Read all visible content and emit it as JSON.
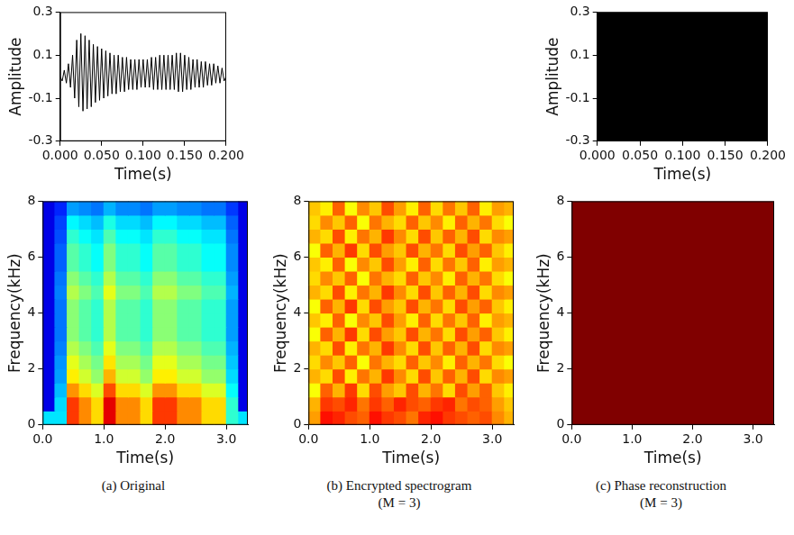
{
  "chart_data": [
    {
      "type": "line",
      "x_label": "Time(s)",
      "y_label": "Amplitude",
      "color": "#000000",
      "grid": false,
      "xlim": [
        0,
        0.2
      ],
      "ylim": [
        -0.3,
        0.3
      ],
      "xticks": [
        {
          "value": 0,
          "label": "0.000"
        },
        {
          "value": 0.05,
          "label": "0.050"
        },
        {
          "value": 0.1,
          "label": "0.100"
        },
        {
          "value": 0.15,
          "label": "0.150"
        },
        {
          "value": 0.2,
          "label": "0.200"
        }
      ],
      "yticks": [
        -0.3,
        -0.1,
        0.1,
        0.3
      ],
      "x": [
        0,
        0.0025,
        0.005,
        0.0075,
        0.01,
        0.0125,
        0.015,
        0.0175,
        0.02,
        0.0225,
        0.025,
        0.0275,
        0.03,
        0.0325,
        0.035,
        0.0375,
        0.04,
        0.0425,
        0.045,
        0.0475,
        0.05,
        0.0525,
        0.055,
        0.0575,
        0.06,
        0.0625,
        0.065,
        0.0675,
        0.07,
        0.0725,
        0.075,
        0.0775,
        0.08,
        0.0825,
        0.085,
        0.0875,
        0.09,
        0.0925,
        0.095,
        0.0975,
        0.1,
        0.1025,
        0.105,
        0.1075,
        0.11,
        0.1125,
        0.115,
        0.1175,
        0.12,
        0.1225,
        0.125,
        0.1275,
        0.13,
        0.1325,
        0.135,
        0.1375,
        0.14,
        0.1425,
        0.145,
        0.1475,
        0.15,
        0.1525,
        0.155,
        0.1575,
        0.16,
        0.1625,
        0.165,
        0.1675,
        0.17,
        0.1725,
        0.175,
        0.1775,
        0.18,
        0.1825,
        0.185,
        0.1875,
        0.19,
        0.1925,
        0.195,
        0.1975,
        0.2
      ],
      "values": [
        0,
        -0.02,
        0.03,
        -0.03,
        0.06,
        -0.05,
        0.1,
        -0.1,
        0.17,
        -0.14,
        0.2,
        -0.16,
        0.19,
        -0.15,
        0.17,
        -0.14,
        0.15,
        -0.12,
        0.14,
        -0.11,
        0.13,
        -0.1,
        0.12,
        -0.09,
        0.11,
        -0.08,
        0.1,
        -0.08,
        0.1,
        -0.07,
        0.09,
        -0.07,
        0.09,
        -0.06,
        0.08,
        -0.06,
        0.08,
        -0.06,
        0.08,
        -0.05,
        0.08,
        -0.05,
        0.08,
        -0.05,
        0.09,
        -0.06,
        0.09,
        -0.06,
        0.1,
        -0.06,
        0.1,
        -0.06,
        0.1,
        -0.06,
        0.1,
        -0.06,
        0.11,
        -0.07,
        0.11,
        -0.07,
        0.1,
        -0.06,
        0.09,
        -0.06,
        0.08,
        -0.05,
        0.08,
        -0.05,
        0.07,
        -0.05,
        0.07,
        -0.04,
        0.06,
        -0.04,
        0.06,
        -0.03,
        0.05,
        -0.03,
        0.04,
        -0.02,
        0
      ]
    },
    {
      "type": "area",
      "x_label": "Time(s)",
      "y_label": "Amplitude",
      "color": "#000000",
      "grid": false,
      "xlim": [
        0,
        0.2
      ],
      "ylim": [
        -0.3,
        0.3
      ],
      "xticks": [
        {
          "value": 0,
          "label": "0.000"
        },
        {
          "value": 0.05,
          "label": "0.050"
        },
        {
          "value": 0.1,
          "label": "0.100"
        },
        {
          "value": 0.15,
          "label": "0.150"
        },
        {
          "value": 0.2,
          "label": "0.200"
        }
      ],
      "yticks": [
        -0.3,
        -0.1,
        0.1,
        0.3
      ],
      "x": [
        0,
        0.2
      ],
      "upper": [
        0.3,
        0.3
      ],
      "lower": [
        -0.3,
        -0.3
      ]
    },
    {
      "type": "heatmap",
      "caption": [
        "(a) Original"
      ],
      "x_label": "Time(s)",
      "y_label": "Frequency(kHz)",
      "grid": false,
      "xlim": [
        0,
        3.35
      ],
      "ylim": [
        0,
        8
      ],
      "xticks": [
        {
          "value": 0,
          "label": "0.0"
        },
        {
          "value": 1,
          "label": "1.0"
        },
        {
          "value": 2,
          "label": "2.0"
        },
        {
          "value": 3,
          "label": "3.0"
        }
      ],
      "yticks": [
        0,
        2,
        4,
        6,
        8
      ],
      "zlim": [
        0,
        1
      ],
      "x_edges": [
        0,
        0.2,
        0.4,
        0.6,
        0.8,
        1,
        1.2,
        1.4,
        1.6,
        1.8,
        2,
        2.2,
        2.4,
        2.6,
        2.8,
        3,
        3.2,
        3.35
      ],
      "y_edges": [
        0,
        0.5,
        1,
        1.5,
        2,
        2.5,
        3,
        3.5,
        4,
        4.5,
        5,
        5.5,
        6,
        6.5,
        7,
        7.5,
        8
      ],
      "cells": [
        [
          0.35,
          0.35,
          0.82,
          0.74,
          0.66,
          0.9,
          0.74,
          0.74,
          0.66,
          0.82,
          0.82,
          0.74,
          0.74,
          0.66,
          0.66,
          0.42,
          0.35
        ],
        [
          0.1,
          0.34,
          0.82,
          0.74,
          0.66,
          0.9,
          0.74,
          0.74,
          0.66,
          0.82,
          0.82,
          0.74,
          0.74,
          0.66,
          0.66,
          0.42,
          0.1
        ],
        [
          0.1,
          0.31,
          0.73,
          0.66,
          0.59,
          0.8,
          0.66,
          0.66,
          0.59,
          0.73,
          0.73,
          0.66,
          0.66,
          0.59,
          0.59,
          0.38,
          0.1
        ],
        [
          0.1,
          0.28,
          0.64,
          0.58,
          0.52,
          0.7,
          0.58,
          0.58,
          0.52,
          0.64,
          0.64,
          0.58,
          0.58,
          0.52,
          0.52,
          0.34,
          0.1
        ],
        [
          0.1,
          0.27,
          0.6,
          0.54,
          0.49,
          0.65,
          0.54,
          0.54,
          0.49,
          0.6,
          0.6,
          0.54,
          0.54,
          0.49,
          0.49,
          0.32,
          0.1
        ],
        [
          0.1,
          0.25,
          0.55,
          0.5,
          0.45,
          0.6,
          0.5,
          0.5,
          0.45,
          0.55,
          0.55,
          0.5,
          0.5,
          0.45,
          0.45,
          0.3,
          0.1
        ],
        [
          0.1,
          0.24,
          0.51,
          0.46,
          0.42,
          0.55,
          0.46,
          0.46,
          0.42,
          0.51,
          0.51,
          0.46,
          0.46,
          0.42,
          0.42,
          0.28,
          0.1
        ],
        [
          0.1,
          0.24,
          0.51,
          0.46,
          0.42,
          0.55,
          0.46,
          0.46,
          0.42,
          0.51,
          0.51,
          0.46,
          0.46,
          0.42,
          0.42,
          0.28,
          0.1
        ],
        [
          0.1,
          0.24,
          0.51,
          0.46,
          0.42,
          0.55,
          0.46,
          0.46,
          0.42,
          0.51,
          0.51,
          0.46,
          0.46,
          0.42,
          0.42,
          0.28,
          0.1
        ],
        [
          0.1,
          0.25,
          0.55,
          0.5,
          0.45,
          0.6,
          0.5,
          0.5,
          0.45,
          0.55,
          0.55,
          0.5,
          0.5,
          0.45,
          0.45,
          0.3,
          0.1
        ],
        [
          0.1,
          0.24,
          0.51,
          0.46,
          0.42,
          0.55,
          0.46,
          0.46,
          0.42,
          0.51,
          0.51,
          0.46,
          0.46,
          0.42,
          0.42,
          0.28,
          0.1
        ],
        [
          0.1,
          0.22,
          0.46,
          0.42,
          0.38,
          0.5,
          0.42,
          0.42,
          0.38,
          0.46,
          0.46,
          0.42,
          0.42,
          0.38,
          0.38,
          0.26,
          0.1
        ],
        [
          0.1,
          0.22,
          0.46,
          0.42,
          0.38,
          0.5,
          0.42,
          0.42,
          0.38,
          0.46,
          0.46,
          0.42,
          0.42,
          0.38,
          0.38,
          0.26,
          0.1
        ],
        [
          0.1,
          0.2,
          0.42,
          0.38,
          0.35,
          0.45,
          0.38,
          0.38,
          0.35,
          0.42,
          0.42,
          0.38,
          0.38,
          0.35,
          0.35,
          0.24,
          0.1
        ],
        [
          0.1,
          0.19,
          0.37,
          0.34,
          0.31,
          0.4,
          0.34,
          0.34,
          0.31,
          0.37,
          0.37,
          0.34,
          0.34,
          0.31,
          0.31,
          0.22,
          0.1
        ],
        [
          0.1,
          0.16,
          0.28,
          0.26,
          0.24,
          0.3,
          0.26,
          0.26,
          0.24,
          0.28,
          0.28,
          0.26,
          0.26,
          0.24,
          0.24,
          0.18,
          0.1
        ]
      ]
    },
    {
      "type": "heatmap",
      "caption": [
        "(b) Encrypted spectrogram",
        "(M = 3)"
      ],
      "x_label": "Time(s)",
      "y_label": "Frequency(kHz)",
      "grid": false,
      "xlim": [
        0,
        3.35
      ],
      "ylim": [
        0,
        8
      ],
      "xticks": [
        {
          "value": 0,
          "label": "0.0"
        },
        {
          "value": 1,
          "label": "1.0"
        },
        {
          "value": 2,
          "label": "2.0"
        },
        {
          "value": 3,
          "label": "3.0"
        }
      ],
      "yticks": [
        0,
        2,
        4,
        6,
        8
      ],
      "zlim": [
        0,
        1
      ],
      "x_edges": [
        0,
        0.2,
        0.4,
        0.6,
        0.8,
        1,
        1.2,
        1.4,
        1.6,
        1.8,
        2,
        2.2,
        2.4,
        2.6,
        2.8,
        3,
        3.2,
        3.35
      ],
      "y_edges": [
        0,
        0.5,
        1,
        1.5,
        2,
        2.5,
        3,
        3.5,
        4,
        4.5,
        5,
        5.5,
        6,
        6.5,
        7,
        7.5,
        8
      ],
      "cells": [
        [
          0.72,
          0.86,
          0.84,
          0.8,
          0.78,
          0.86,
          0.82,
          0.8,
          0.76,
          0.84,
          0.86,
          0.82,
          0.8,
          0.78,
          0.8,
          0.74,
          0.7
        ],
        [
          0.7,
          0.82,
          0.8,
          0.84,
          0.76,
          0.82,
          0.78,
          0.84,
          0.8,
          0.78,
          0.82,
          0.84,
          0.76,
          0.8,
          0.78,
          0.72,
          0.68
        ],
        [
          0.62,
          0.78,
          0.7,
          0.82,
          0.66,
          0.8,
          0.72,
          0.68,
          0.8,
          0.7,
          0.76,
          0.66,
          0.8,
          0.72,
          0.78,
          0.68,
          0.64
        ],
        [
          0.7,
          0.66,
          0.8,
          0.64,
          0.76,
          0.7,
          0.82,
          0.74,
          0.66,
          0.8,
          0.68,
          0.78,
          0.7,
          0.8,
          0.66,
          0.74,
          0.72
        ],
        [
          0.66,
          0.74,
          0.68,
          0.78,
          0.62,
          0.76,
          0.7,
          0.66,
          0.78,
          0.68,
          0.74,
          0.64,
          0.78,
          0.7,
          0.76,
          0.66,
          0.62
        ],
        [
          0.7,
          0.66,
          0.8,
          0.64,
          0.76,
          0.7,
          0.82,
          0.74,
          0.66,
          0.8,
          0.68,
          0.78,
          0.7,
          0.8,
          0.66,
          0.74,
          0.72
        ],
        [
          0.62,
          0.78,
          0.7,
          0.82,
          0.66,
          0.8,
          0.72,
          0.68,
          0.8,
          0.7,
          0.76,
          0.66,
          0.8,
          0.72,
          0.78,
          0.68,
          0.64
        ],
        [
          0.68,
          0.64,
          0.78,
          0.62,
          0.74,
          0.68,
          0.8,
          0.72,
          0.64,
          0.78,
          0.66,
          0.76,
          0.68,
          0.78,
          0.64,
          0.72,
          0.7
        ],
        [
          0.62,
          0.78,
          0.7,
          0.82,
          0.66,
          0.8,
          0.72,
          0.68,
          0.8,
          0.7,
          0.76,
          0.66,
          0.8,
          0.72,
          0.78,
          0.68,
          0.64
        ],
        [
          0.7,
          0.66,
          0.8,
          0.64,
          0.76,
          0.7,
          0.82,
          0.74,
          0.66,
          0.8,
          0.68,
          0.78,
          0.7,
          0.8,
          0.66,
          0.74,
          0.72
        ],
        [
          0.66,
          0.74,
          0.68,
          0.78,
          0.62,
          0.76,
          0.7,
          0.66,
          0.78,
          0.68,
          0.74,
          0.64,
          0.78,
          0.7,
          0.76,
          0.66,
          0.62
        ],
        [
          0.68,
          0.64,
          0.78,
          0.62,
          0.74,
          0.68,
          0.8,
          0.72,
          0.64,
          0.78,
          0.66,
          0.76,
          0.68,
          0.78,
          0.64,
          0.72,
          0.7
        ],
        [
          0.62,
          0.78,
          0.7,
          0.82,
          0.66,
          0.8,
          0.72,
          0.68,
          0.8,
          0.7,
          0.76,
          0.66,
          0.8,
          0.72,
          0.78,
          0.68,
          0.64
        ],
        [
          0.7,
          0.66,
          0.8,
          0.64,
          0.76,
          0.7,
          0.82,
          0.74,
          0.66,
          0.8,
          0.68,
          0.78,
          0.7,
          0.8,
          0.66,
          0.74,
          0.72
        ],
        [
          0.66,
          0.74,
          0.68,
          0.78,
          0.62,
          0.76,
          0.7,
          0.66,
          0.78,
          0.68,
          0.74,
          0.64,
          0.78,
          0.7,
          0.76,
          0.66,
          0.62
        ],
        [
          0.68,
          0.64,
          0.78,
          0.62,
          0.74,
          0.68,
          0.8,
          0.72,
          0.64,
          0.78,
          0.66,
          0.76,
          0.68,
          0.78,
          0.64,
          0.72,
          0.7
        ]
      ]
    },
    {
      "type": "heatmap",
      "caption": [
        "(c) Phase reconstruction",
        "(M = 3)"
      ],
      "x_label": "Time(s)",
      "y_label": "Frequency(kHz)",
      "grid": false,
      "xlim": [
        0,
        3.35
      ],
      "ylim": [
        0,
        8
      ],
      "xticks": [
        {
          "value": 0,
          "label": "0.0"
        },
        {
          "value": 1,
          "label": "1.0"
        },
        {
          "value": 2,
          "label": "2.0"
        },
        {
          "value": 3,
          "label": "3.0"
        }
      ],
      "yticks": [
        0,
        2,
        4,
        6,
        8
      ],
      "zlim": [
        0,
        1
      ],
      "x_edges": [
        0,
        3.35
      ],
      "y_edges": [
        0,
        8
      ],
      "cells": [
        [
          1
        ]
      ]
    }
  ]
}
